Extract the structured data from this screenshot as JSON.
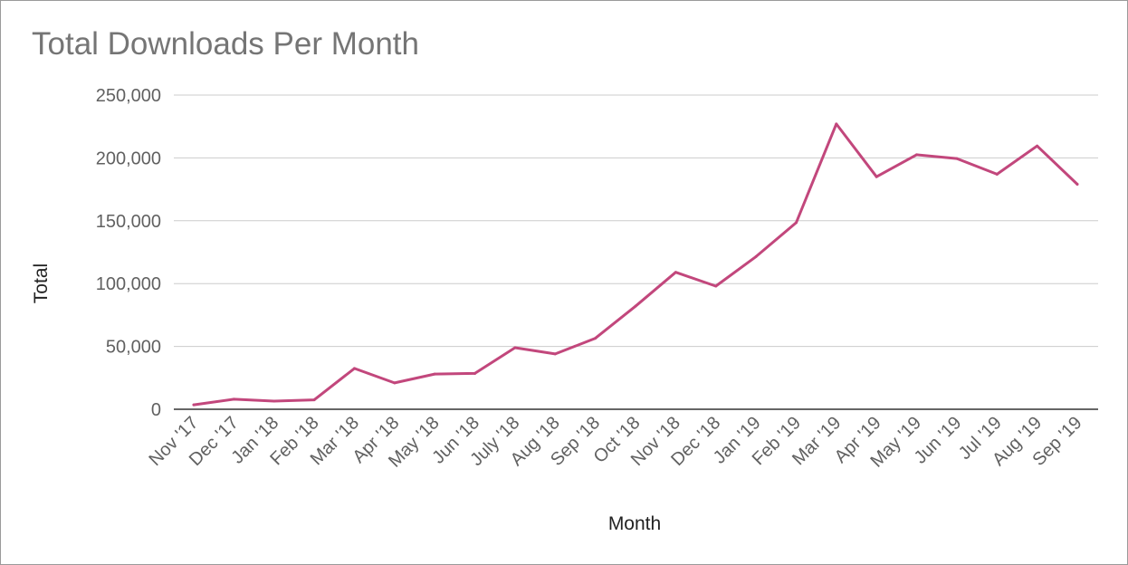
{
  "chart_data": {
    "type": "line",
    "title": "Total Downloads Per Month",
    "xlabel": "Month",
    "ylabel": "Total",
    "categories": [
      "Nov '17",
      "Dec '17",
      "Jan '18",
      "Feb '18",
      "Mar '18",
      "Apr '18",
      "May '18",
      "Jun '18",
      "July '18",
      "Aug '18",
      "Sep '18",
      "Oct '18",
      "Nov '18",
      "Dec '18",
      "Jan '19",
      "Feb '19",
      "Mar '19",
      "Apr '19",
      "May '19",
      "Jun '19",
      "Jul '19",
      "Aug '19",
      "Sep '19"
    ],
    "series": [
      {
        "values": [
          3500,
          8000,
          6500,
          7500,
          32500,
          21000,
          28000,
          28500,
          49000,
          44000,
          56500,
          82000,
          109000,
          98000,
          121500,
          148500,
          227000,
          185000,
          202500,
          199500,
          187000,
          209500,
          179000
        ],
        "color": "#c2477c"
      }
    ],
    "ylim": [
      0,
      250000
    ],
    "yticks": [
      0,
      50000,
      100000,
      150000,
      200000,
      250000
    ],
    "ytick_labels": [
      "0",
      "50,000",
      "100,000",
      "150,000",
      "200,000",
      "250,000"
    ],
    "grid": true,
    "legend": "none"
  }
}
